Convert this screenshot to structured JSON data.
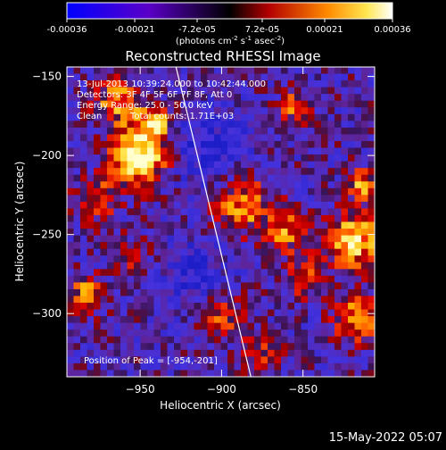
{
  "colorbar": {
    "ticks": [
      "-0.00036",
      "-0.00021",
      "-7.2e-05",
      "7.2e-05",
      "0.00021",
      "0.00036"
    ],
    "tick_values": [
      -0.00036,
      -0.00021,
      -7.2e-05,
      7.2e-05,
      0.00021,
      0.00036
    ],
    "range": [
      -0.00036,
      0.00036
    ],
    "units": "(photons cm",
    "units_exp1": "-2",
    "units_mid": " s",
    "units_exp2": "-1",
    "units_mid2": " asec",
    "units_exp3": "-2",
    "units_end": ")"
  },
  "chart_data": {
    "type": "heatmap",
    "title": "Reconstructed RHESSI Image",
    "xlabel": "Heliocentric X (arcsec)",
    "ylabel": "Heliocentric Y (arcsec)",
    "x_ticks": [
      -950,
      -900,
      -850
    ],
    "y_ticks": [
      -150,
      -200,
      -250,
      -300
    ],
    "x_tick_labels": [
      "−950",
      "−900",
      "−850"
    ],
    "y_tick_labels": [
      "−150",
      "−200",
      "−250",
      "−300"
    ],
    "xlim": [
      -995,
      -806
    ],
    "ylim": [
      -340,
      -144
    ],
    "grid": false,
    "limb_line": [
      [
        -928,
        -144
      ],
      [
        -882,
        -340
      ]
    ],
    "annotations": {
      "line1": "13-Jul-2013 10:39:24.000 to 10:42:44.000",
      "line2": "Detectors: 3F 4F 5F 6F 7F 8F, Att 0",
      "line3": "Energy Range: 25.0 - 50.0 keV",
      "line4_a": "Clean",
      "line4_b": "Total counts: 1.71E+03",
      "peak": "Position of Peak = [-954,-201]"
    },
    "peak_position": [
      -954,
      -201
    ],
    "grid_size": [
      46,
      46
    ]
  },
  "footer": {
    "date": "15-May-2022 05:07"
  }
}
